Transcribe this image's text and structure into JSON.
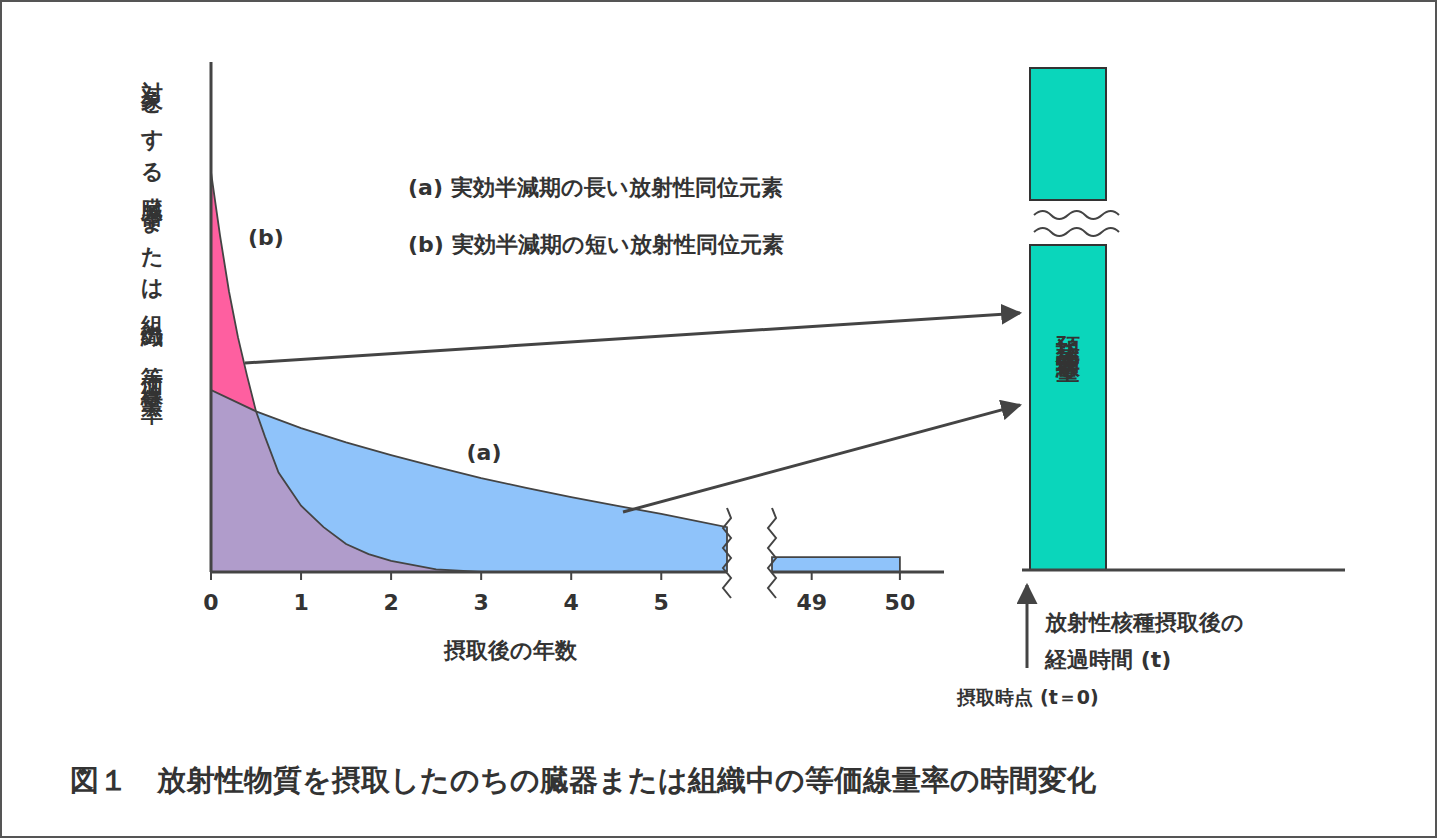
{
  "chart_data": {
    "type": "area",
    "title": "図１　放射性物質を摂取したのちの臓器または組織中の等価線量率の時間変化",
    "x_label": "摂取後の年数",
    "y_label": "対象とする臓器または組織の等価線量率",
    "xlim": [
      0,
      50.5
    ],
    "x_break": [
      5.73,
      48.55
    ],
    "xticks": [
      0,
      1,
      2,
      3,
      4,
      5,
      49,
      50
    ],
    "ylim": [
      0,
      100
    ],
    "tick_labels": "x",
    "series": [
      {
        "name": "(a) 実効半減期の長い放射性同位元素",
        "label": "(a)",
        "color": "#8fc3fa",
        "x": [
          0,
          0.5,
          1,
          1.5,
          2,
          2.5,
          3,
          3.5,
          4,
          4.5,
          5,
          5.73,
          27,
          48.55,
          49,
          50
        ],
        "values": [
          35.7,
          31.5,
          28.2,
          25.4,
          22.9,
          20.6,
          18.4,
          16.5,
          14.7,
          13.0,
          11.4,
          8.8,
          null,
          2.9,
          2.9,
          2.9
        ]
      },
      {
        "name": "(b) 実効半減期の短い放射性同位元素",
        "label": "(b)",
        "color": "#fe5fa0",
        "x": [
          0,
          0.1,
          0.2,
          0.3,
          0.4,
          0.5,
          0.6,
          0.75,
          1,
          1.25,
          1.5,
          1.75,
          2,
          2.5,
          3
        ],
        "values": [
          78.4,
          66,
          55,
          46,
          38.5,
          31.5,
          26.5,
          19.5,
          13,
          8.8,
          5.5,
          3.5,
          2.2,
          0.5,
          0
        ]
      }
    ],
    "annotations": {
      "bar_label": "預託等価線量",
      "time_axis_label": [
        "放射性核種摂取後の",
        "経過時間 (t)"
      ],
      "intake_label": "摂取時点 (t＝0)"
    }
  }
}
